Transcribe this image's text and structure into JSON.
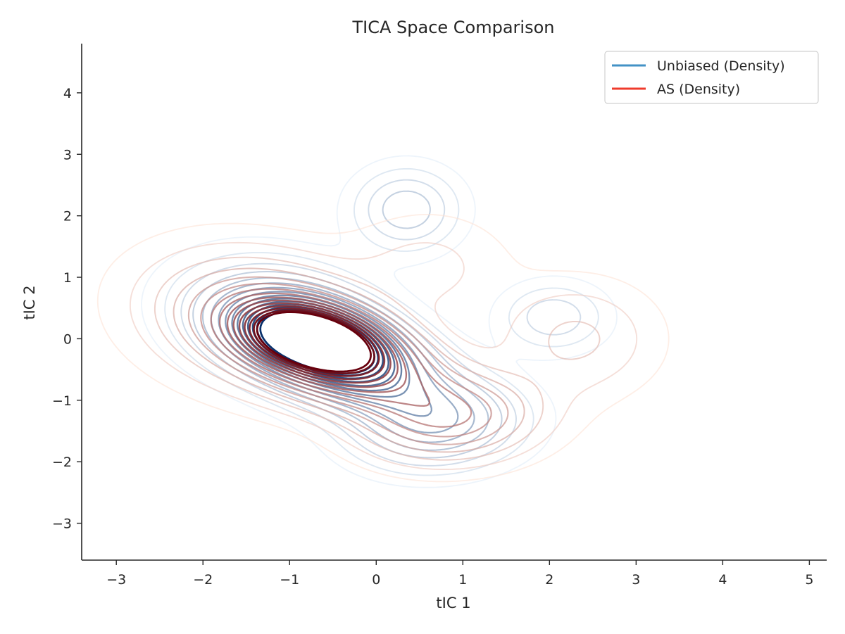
{
  "chart_data": {
    "type": "contour",
    "title": "TICA Space Comparison",
    "xlabel": "tIC 1",
    "ylabel": "tIC 2",
    "xlim": [
      -3.4,
      5.2
    ],
    "ylim": [
      -3.6,
      4.8
    ],
    "xticks": [
      -3,
      -2,
      -1,
      0,
      1,
      2,
      3,
      4,
      5
    ],
    "yticks": [
      -3,
      -2,
      -1,
      0,
      1,
      2,
      3,
      4
    ],
    "xtick_labels": [
      "−3",
      "−2",
      "−1",
      "0",
      "1",
      "2",
      "3",
      "4",
      "5"
    ],
    "ytick_labels": [
      "−3",
      "−2",
      "−1",
      "0",
      "1",
      "2",
      "3",
      "4"
    ],
    "grid": false,
    "legend_position": "top-right",
    "series": [
      {
        "name": "Unbiased (Density)",
        "legend_color": "#4292c6",
        "color_light": "#deebf7",
        "color_dark": "#08306b",
        "levels": [
          0.004,
          0.01,
          0.018,
          0.027,
          0.037,
          0.048,
          0.06,
          0.073,
          0.087,
          0.1,
          0.114,
          0.128,
          0.142,
          0.155,
          0.165
        ],
        "components": [
          {
            "mx": -0.72,
            "my": 0.0,
            "sx": 0.55,
            "sy": 0.4,
            "rho": -0.35,
            "w": 0.18
          },
          {
            "mx": -0.25,
            "my": -0.45,
            "sx": 0.7,
            "sy": 0.55,
            "rho": -0.45,
            "w": 0.09
          },
          {
            "mx": 0.7,
            "my": -1.4,
            "sx": 0.6,
            "sy": 0.45,
            "rho": 0.1,
            "w": 0.05
          },
          {
            "mx": 0.35,
            "my": 2.1,
            "sx": 0.38,
            "sy": 0.42,
            "rho": 0.0,
            "w": 0.035
          },
          {
            "mx": 2.05,
            "my": 0.35,
            "sx": 0.38,
            "sy": 0.35,
            "rho": 0.0,
            "w": 0.025
          },
          {
            "mx": -1.1,
            "my": 0.3,
            "sx": 0.7,
            "sy": 0.6,
            "rho": -0.2,
            "w": 0.05
          }
        ]
      },
      {
        "name": "AS (Density)",
        "legend_color": "#ef3b2c",
        "color_light": "#fee0d2",
        "color_dark": "#67000d",
        "levels": [
          0.004,
          0.01,
          0.018,
          0.027,
          0.037,
          0.048,
          0.06,
          0.073,
          0.087,
          0.1,
          0.114,
          0.128,
          0.142,
          0.155,
          0.165
        ],
        "components": [
          {
            "mx": -0.75,
            "my": 0.0,
            "sx": 0.5,
            "sy": 0.36,
            "rho": -0.35,
            "w": 0.19
          },
          {
            "mx": -0.3,
            "my": -0.4,
            "sx": 0.75,
            "sy": 0.55,
            "rho": -0.45,
            "w": 0.09
          },
          {
            "mx": 0.9,
            "my": -1.3,
            "sx": 0.65,
            "sy": 0.45,
            "rho": 0.1,
            "w": 0.05
          },
          {
            "mx": 2.3,
            "my": 0.0,
            "sx": 0.6,
            "sy": 0.6,
            "rho": 0.0,
            "w": 0.02
          },
          {
            "mx": -1.3,
            "my": 0.3,
            "sx": 0.85,
            "sy": 0.7,
            "rho": -0.2,
            "w": 0.05
          },
          {
            "mx": 0.6,
            "my": 1.2,
            "sx": 0.6,
            "sy": 0.55,
            "rho": 0.0,
            "w": 0.012
          }
        ]
      }
    ]
  }
}
